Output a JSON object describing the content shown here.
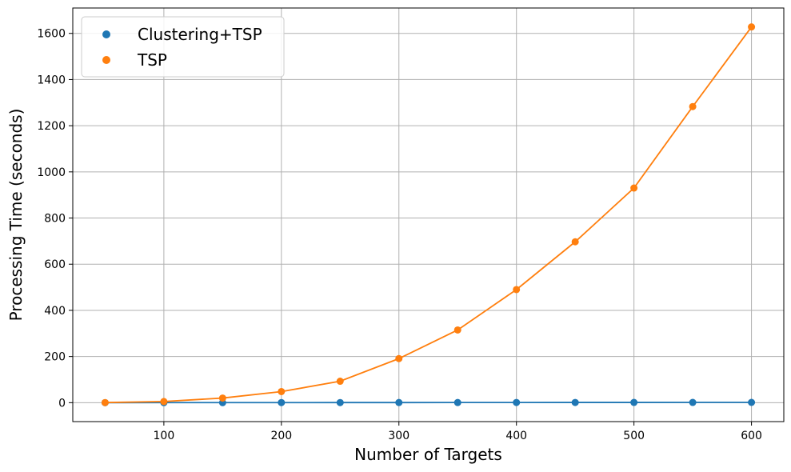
{
  "chart_data": {
    "type": "scatter",
    "xlabel": "Number of Targets",
    "ylabel": "Processing Time (seconds)",
    "xlim": [
      22.5,
      627.5
    ],
    "ylim": [
      -82,
      1710
    ],
    "xticks": [
      100,
      200,
      300,
      400,
      500,
      600
    ],
    "yticks": [
      0,
      200,
      400,
      600,
      800,
      1000,
      1200,
      1400,
      1600
    ],
    "grid": true,
    "legend_position": "top-left",
    "x": [
      50,
      100,
      150,
      200,
      250,
      300,
      350,
      400,
      450,
      500,
      550,
      600
    ],
    "series": [
      {
        "name": "Clustering+TSP",
        "color": "#1f77b4",
        "values": [
          0.1,
          0.2,
          0.3,
          0.4,
          0.5,
          0.6,
          0.7,
          0.8,
          0.9,
          1.0,
          1.1,
          1.2
        ]
      },
      {
        "name": "TSP",
        "color": "#ff7f0e",
        "values": [
          0.5,
          5,
          20,
          48,
          93,
          191,
          315,
          490,
          697,
          930,
          1283,
          1628
        ]
      }
    ]
  }
}
